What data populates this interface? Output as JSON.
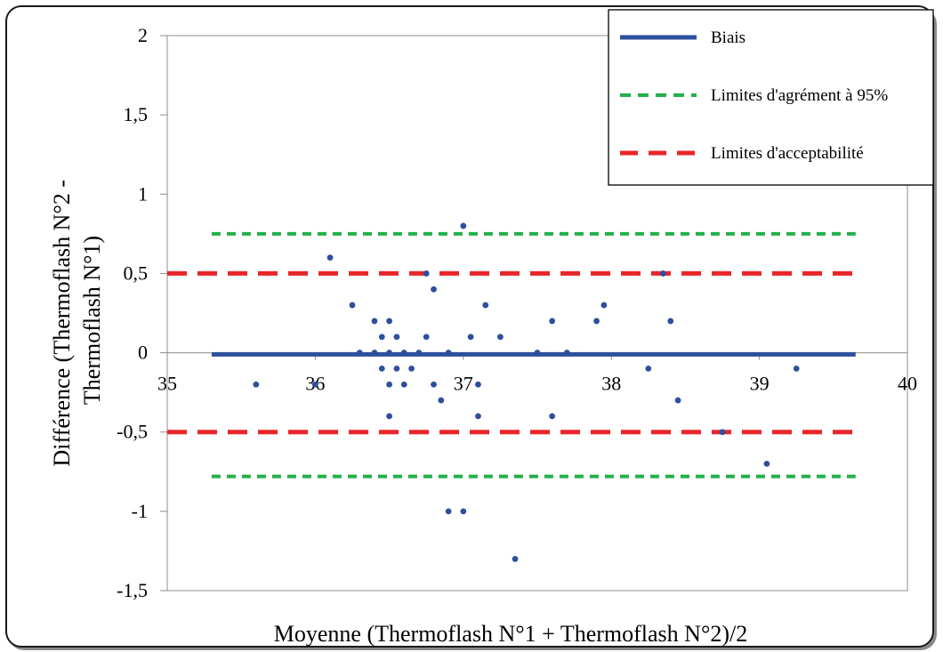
{
  "chart_data": {
    "type": "scatter",
    "xlabel": "Moyenne (Thermoflash N°1 + Thermoflash N°2)/2",
    "ylabel_lines": [
      "Différence (Thermoflash N°2 -",
      "Thermoflash N°1)"
    ],
    "xlim": [
      35,
      40
    ],
    "ylim": [
      -1.5,
      2
    ],
    "x_ticks": [
      {
        "value": 35,
        "label": "35"
      },
      {
        "value": 36,
        "label": "36"
      },
      {
        "value": 37,
        "label": "37"
      },
      {
        "value": 38,
        "label": "38"
      },
      {
        "value": 39,
        "label": "39"
      },
      {
        "value": 40,
        "label": "40"
      }
    ],
    "y_ticks": [
      {
        "value": 2,
        "label": "2"
      },
      {
        "value": 1.5,
        "label": "1,5"
      },
      {
        "value": 1,
        "label": "1"
      },
      {
        "value": 0.5,
        "label": "0,5"
      },
      {
        "value": 0,
        "label": "0"
      },
      {
        "value": -0.5,
        "label": "-0,5"
      },
      {
        "value": -1,
        "label": "-1"
      },
      {
        "value": -1.5,
        "label": "-1,5"
      }
    ],
    "grid": false,
    "legend_position": "top-right",
    "lines": [
      {
        "name": "Biais",
        "y": -0.01,
        "x_range": [
          35.3,
          39.65
        ],
        "color": "#2e4f9e",
        "style": "solid"
      },
      {
        "name": "Limites d'agrément à 95%",
        "y": 0.75,
        "x_range": [
          35.3,
          39.65
        ],
        "color": "#22b04a",
        "style": "dashed"
      },
      {
        "name": "Limites d'agrément à 95%",
        "y": -0.78,
        "x_range": [
          35.3,
          39.65
        ],
        "color": "#22b04a",
        "style": "dashed"
      },
      {
        "name": "Limites d'acceptabilité",
        "y": 0.5,
        "x_range": [
          35.0,
          39.65
        ],
        "color": "#e8262a",
        "style": "dashed"
      },
      {
        "name": "Limites d'acceptabilité",
        "y": -0.5,
        "x_range": [
          35.0,
          39.65
        ],
        "color": "#e8262a",
        "style": "dashed"
      }
    ],
    "legend": [
      {
        "label": "Biais",
        "color": "#2e4f9e",
        "style": "solid"
      },
      {
        "label": "Limites d'agrément à 95%",
        "color": "#22b04a",
        "style": "dashed"
      },
      {
        "label": "Limites d'acceptabilité",
        "color": "#e8262a",
        "style": "dashed"
      }
    ],
    "point_color": "#2e4f9e",
    "points": [
      {
        "x": 35.6,
        "y": -0.2
      },
      {
        "x": 36.0,
        "y": -0.2
      },
      {
        "x": 36.1,
        "y": 0.6
      },
      {
        "x": 36.25,
        "y": 0.3
      },
      {
        "x": 36.3,
        "y": 0.0
      },
      {
        "x": 36.4,
        "y": 0.2
      },
      {
        "x": 36.4,
        "y": 0.0
      },
      {
        "x": 36.45,
        "y": 0.1
      },
      {
        "x": 36.45,
        "y": -0.1
      },
      {
        "x": 36.5,
        "y": 0.2
      },
      {
        "x": 36.5,
        "y": 0.0
      },
      {
        "x": 36.5,
        "y": -0.2
      },
      {
        "x": 36.5,
        "y": -0.4
      },
      {
        "x": 36.55,
        "y": 0.1
      },
      {
        "x": 36.55,
        "y": -0.1
      },
      {
        "x": 36.6,
        "y": 0.0
      },
      {
        "x": 36.6,
        "y": -0.2
      },
      {
        "x": 36.65,
        "y": -0.1
      },
      {
        "x": 36.7,
        "y": 0.0
      },
      {
        "x": 36.75,
        "y": 0.1
      },
      {
        "x": 36.75,
        "y": 0.5
      },
      {
        "x": 36.8,
        "y": 0.4
      },
      {
        "x": 36.8,
        "y": -0.2
      },
      {
        "x": 36.85,
        "y": -0.3
      },
      {
        "x": 36.9,
        "y": 0.0
      },
      {
        "x": 36.9,
        "y": -1.0
      },
      {
        "x": 37.0,
        "y": 0.8
      },
      {
        "x": 37.0,
        "y": -1.0
      },
      {
        "x": 37.05,
        "y": 0.1
      },
      {
        "x": 37.1,
        "y": -0.2
      },
      {
        "x": 37.1,
        "y": -0.4
      },
      {
        "x": 37.15,
        "y": 0.3
      },
      {
        "x": 37.25,
        "y": 0.1
      },
      {
        "x": 37.35,
        "y": -1.3
      },
      {
        "x": 37.5,
        "y": 0.0
      },
      {
        "x": 37.6,
        "y": 0.2
      },
      {
        "x": 37.6,
        "y": -0.4
      },
      {
        "x": 37.7,
        "y": 0.0
      },
      {
        "x": 37.9,
        "y": 0.2
      },
      {
        "x": 37.95,
        "y": 0.3
      },
      {
        "x": 38.25,
        "y": -0.1
      },
      {
        "x": 38.35,
        "y": 0.5
      },
      {
        "x": 38.4,
        "y": 0.2
      },
      {
        "x": 38.45,
        "y": -0.3
      },
      {
        "x": 38.75,
        "y": -0.5
      },
      {
        "x": 39.05,
        "y": -0.7
      },
      {
        "x": 39.25,
        "y": -0.1
      }
    ]
  }
}
